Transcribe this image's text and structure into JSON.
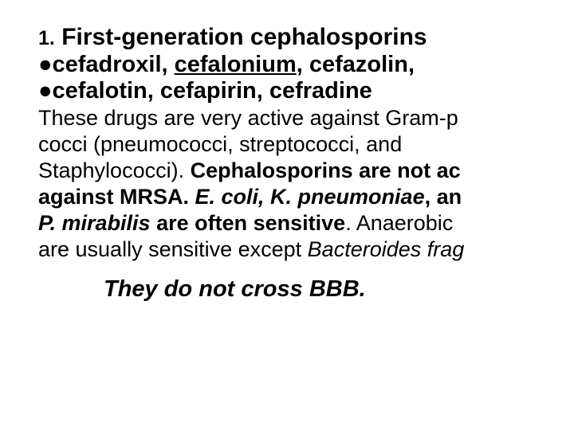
{
  "heading_num": "1.",
  "heading_rest": " First-generation cephalosporins",
  "sub_line1_pre": "●cefadroxil, ",
  "sub_line1_underline": "cefalonium",
  "sub_line1_post": ", cefazolin,",
  "sub_line2": "●cefalotin, cefapirin, cefradine",
  "body_a": "These drugs are very active against Gram-p",
  "body_b": "cocci (pneumococci, streptococci, and",
  "body_c_pre": "Staphylococci). ",
  "body_c_bold": "Cephalosporins are not ac",
  "body_d_bold_pre": "against MRSA. ",
  "body_d_bolditalic": "E. coli, K. pneumoniae",
  "body_d_bold_post": ", an",
  "body_e_italic": "P. mirabilis",
  "body_e_bold_post": " are often sensitive",
  "body_e_plain": ". Anaerobic ",
  "body_f_pre": "are usually sensitive except ",
  "body_f_italic": "Bacteroides frag",
  "footer": "They do not cross BBB.",
  "colors": {
    "background": "#ffffff",
    "text": "#000000"
  },
  "fontsizes": {
    "heading_num": 25,
    "heading_rest": 30,
    "subheading": 29,
    "body": 27,
    "footer": 29
  }
}
